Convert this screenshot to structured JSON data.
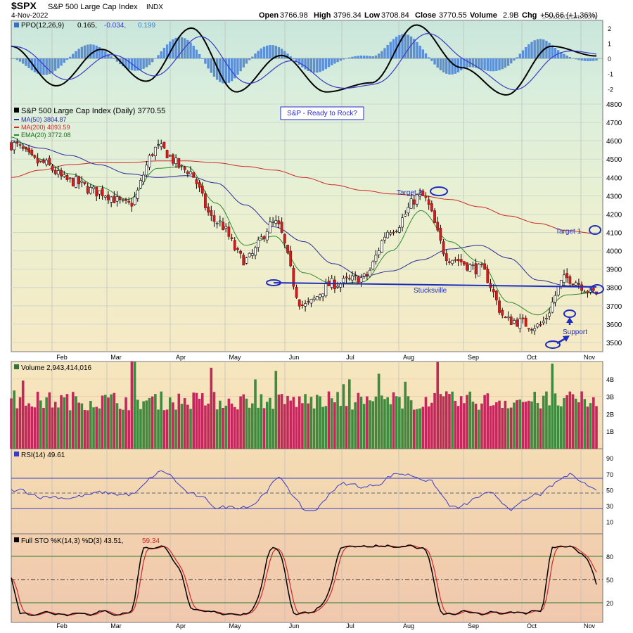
{
  "header": {
    "ticker": "$SPX",
    "name": "S&P 500 Large Cap Index",
    "exchange": "INDX",
    "date": "4-Nov-2022",
    "open_label": "Open",
    "open": "3766.98",
    "high_label": "High",
    "high": "3796.34",
    "low_label": "Low",
    "low": "3708.84",
    "close_label": "Close",
    "close": "3770.55",
    "volume_label": "Volume",
    "volume": "2.9B",
    "chg_label": "Chg",
    "chg": "+50.66 (+1.36%)",
    "watermark": "© StockCharts.com"
  },
  "ppo": {
    "label": "PPO(12,26,9)",
    "v1": "0.165,",
    "v2": "-0.034,",
    "v3": "0.199",
    "ticks": [
      "2",
      "1",
      "0",
      "-1",
      "-2"
    ],
    "range": [
      -3,
      2.5
    ]
  },
  "price": {
    "label": "S&P 500 Large Cap Index (Daily) 3770.55",
    "ma50_label": "MA(50) 3804.87",
    "ma200_label": "MA(200) 4093.59",
    "ema20_label": "EMA(20) 3772.08",
    "ticks": [
      3500,
      3600,
      3700,
      3800,
      3900,
      4000,
      4100,
      4200,
      4300,
      4400,
      4500,
      4600,
      4700,
      4800
    ],
    "ylim": [
      3450,
      4800
    ],
    "annotations": {
      "title_box": "S&P - Ready to Rock?",
      "target1": "Target 1",
      "target2": "Target 2",
      "stucksville": "Stucksville",
      "support": "Support"
    }
  },
  "volume": {
    "label": "Volume 2,943,414,016",
    "ticks": [
      "4B",
      "3B",
      "2B",
      "1B"
    ]
  },
  "rsi": {
    "label": "RSI(14) 49.61",
    "ticks": [
      "90",
      "70",
      "50",
      "30",
      "10"
    ]
  },
  "sto": {
    "label": "Full STO %K(14,3) %D(3) 43.51,",
    "d_value": "59.34",
    "ticks": [
      "80",
      "50",
      "20"
    ]
  },
  "months": [
    "Feb",
    "Mar",
    "Apr",
    "May",
    "Jun",
    "Jul",
    "Aug",
    "Sep",
    "Oct",
    "Nov"
  ],
  "chart_data": {
    "type": "line",
    "x": [
      "Jan-20",
      "Feb-01",
      "Feb-15",
      "Mar-01",
      "Mar-15",
      "Apr-01",
      "Apr-15",
      "May-01",
      "May-15",
      "Jun-01",
      "Jun-15",
      "Jul-01",
      "Jul-15",
      "Aug-01",
      "Aug-16",
      "Sep-01",
      "Sep-15",
      "Oct-01",
      "Oct-13",
      "Oct-25",
      "Nov-04"
    ],
    "series": [
      {
        "name": "S&P 500 Large Cap Index (Daily)",
        "values": [
          4580,
          4480,
          4380,
          4320,
          4250,
          4560,
          4440,
          4160,
          3950,
          4150,
          3700,
          3820,
          3850,
          4120,
          4300,
          3960,
          3900,
          3620,
          3590,
          3850,
          3770
        ]
      },
      {
        "name": "MA(50)",
        "values": [
          4600,
          4560,
          4520,
          4470,
          4420,
          4400,
          4410,
          4370,
          4250,
          4130,
          4050,
          3930,
          3860,
          3890,
          3950,
          4010,
          4030,
          3960,
          3840,
          3810,
          3805
        ]
      },
      {
        "name": "MA(200)",
        "values": [
          4400,
          4440,
          4470,
          4480,
          4480,
          4490,
          4490,
          4480,
          4460,
          4440,
          4400,
          4360,
          4330,
          4310,
          4300,
          4280,
          4240,
          4190,
          4150,
          4110,
          4094
        ]
      },
      {
        "name": "EMA(20)",
        "values": [
          4620,
          4500,
          4420,
          4350,
          4280,
          4450,
          4460,
          4260,
          4030,
          4080,
          3880,
          3820,
          3830,
          4000,
          4220,
          4050,
          3940,
          3720,
          3650,
          3760,
          3772
        ]
      }
    ],
    "title": "S&P 500 Large Cap Index (Daily) 3770.55",
    "ylim": [
      3450,
      4800
    ],
    "grid": true,
    "legend": "top-left"
  }
}
